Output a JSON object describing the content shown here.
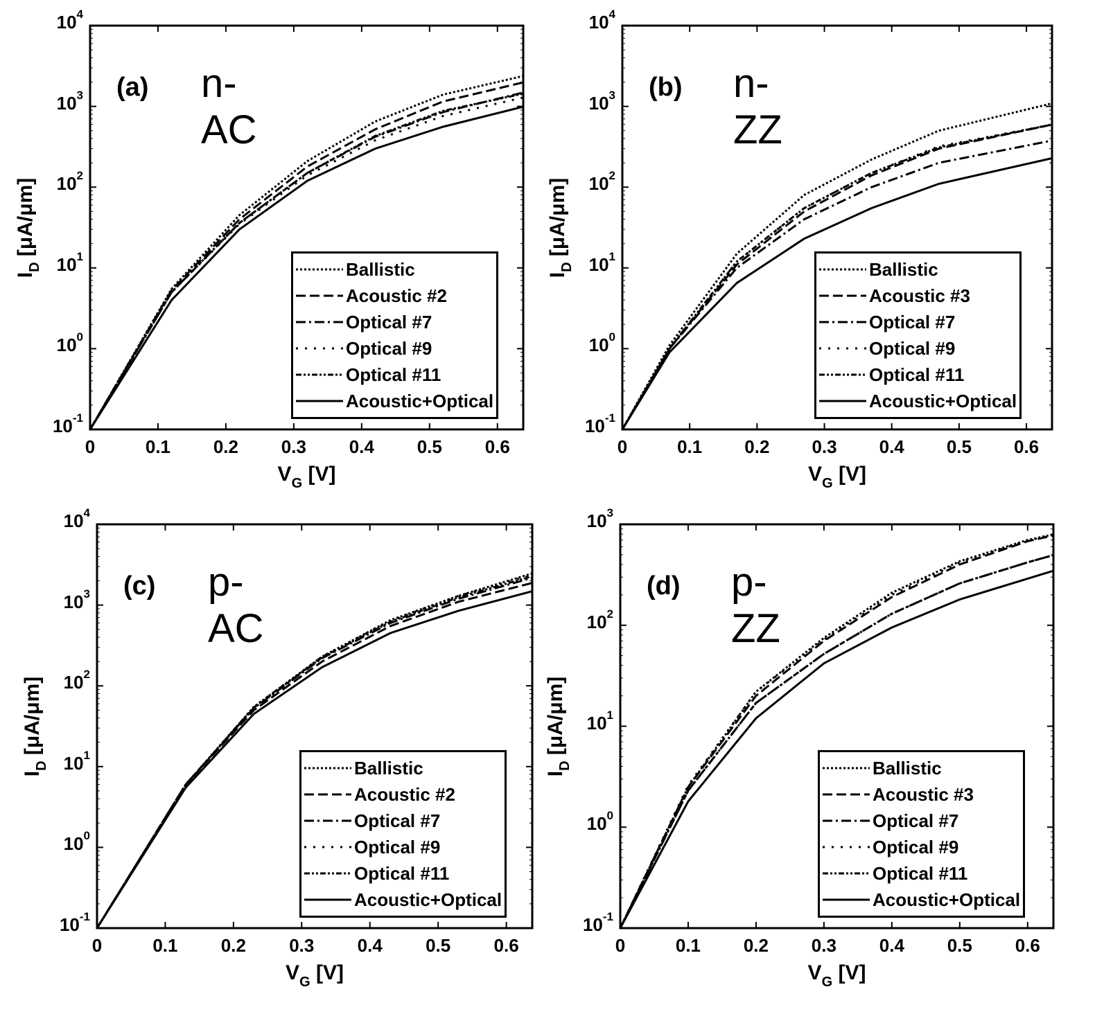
{
  "chart_data": [
    {
      "type": "line",
      "panel_label": "(a)",
      "title": "n-AC",
      "xlabel": {
        "main": "V",
        "sub": "G",
        "unit": " [V]"
      },
      "ylabel": {
        "main": "I",
        "sub": "D",
        "unit": " [μA/μm]"
      },
      "xscale": "linear",
      "yscale": "log",
      "xlim": [
        0,
        0.638
      ],
      "ylim": [
        0.1,
        10000
      ],
      "xticks": [
        "0",
        "0.1",
        "0.2",
        "0.3",
        "0.4",
        "0.5",
        "0.6"
      ],
      "ytick_base": "10",
      "ytick_exponents": [
        "-1",
        "0",
        "1",
        "2",
        "3",
        "4"
      ],
      "legend_position": "bottom-right",
      "x": [
        0,
        0.12,
        0.22,
        0.32,
        0.42,
        0.52,
        0.64
      ],
      "series": [
        {
          "name": "Ballistic",
          "style": "dotted",
          "values": [
            0.1,
            5.5,
            45,
            210,
            650,
            1400,
            2400
          ]
        },
        {
          "name": "Acoustic #2",
          "style": "dashed",
          "values": [
            0.1,
            5.3,
            40,
            180,
            520,
            1150,
            2000
          ]
        },
        {
          "name": "Optical #7",
          "style": "dashdot",
          "values": [
            0.1,
            5,
            36,
            150,
            420,
            850,
            1500
          ]
        },
        {
          "name": "Optical #9",
          "style": "sparse-dotted",
          "values": [
            0.1,
            5,
            35,
            140,
            380,
            760,
            1300
          ]
        },
        {
          "name": "Optical #11",
          "style": "dash-dot-dot",
          "values": [
            0.1,
            5,
            36,
            150,
            430,
            880,
            1450
          ]
        },
        {
          "name": "Acoustic+Optical",
          "style": "solid",
          "values": [
            0.1,
            4,
            30,
            120,
            300,
            560,
            1000
          ]
        }
      ]
    },
    {
      "type": "line",
      "panel_label": "(b)",
      "title": "n-ZZ",
      "xlabel": {
        "main": "V",
        "sub": "G",
        "unit": " [V]"
      },
      "ylabel": {
        "main": "I",
        "sub": "D",
        "unit": " [μA/μm]"
      },
      "xscale": "linear",
      "yscale": "log",
      "xlim": [
        0,
        0.638
      ],
      "ylim": [
        0.1,
        10000
      ],
      "xticks": [
        "0",
        "0.1",
        "0.2",
        "0.3",
        "0.4",
        "0.5",
        "0.6"
      ],
      "ytick_base": "10",
      "ytick_exponents": [
        "-1",
        "0",
        "1",
        "2",
        "3",
        "4"
      ],
      "legend_position": "bottom-right",
      "x": [
        0,
        0.07,
        0.17,
        0.27,
        0.37,
        0.47,
        0.64
      ],
      "series": [
        {
          "name": "Ballistic",
          "style": "dotted",
          "values": [
            0.1,
            1.1,
            15,
            80,
            220,
            500,
            1100
          ]
        },
        {
          "name": "Acoustic #3",
          "style": "dashed",
          "values": [
            0.1,
            1.0,
            11,
            50,
            140,
            300,
            600
          ]
        },
        {
          "name": "Optical #7",
          "style": "dashdot",
          "values": [
            0.1,
            1.0,
            10,
            40,
            100,
            200,
            380
          ]
        },
        {
          "name": "Optical #9",
          "style": "sparse-dotted",
          "values": [
            0.1,
            1.0,
            12,
            55,
            150,
            320,
            600
          ]
        },
        {
          "name": "Optical #11",
          "style": "dash-dot-dot",
          "values": [
            0.1,
            1.0,
            12,
            55,
            150,
            310,
            600
          ]
        },
        {
          "name": "Acoustic+Optical",
          "style": "solid",
          "values": [
            0.1,
            0.9,
            6.5,
            23,
            55,
            110,
            230
          ]
        }
      ]
    },
    {
      "type": "line",
      "panel_label": "(c)",
      "title": "p-AC",
      "xlabel": {
        "main": "V",
        "sub": "G",
        "unit": " [V]"
      },
      "ylabel": {
        "main": "I",
        "sub": "D",
        "unit": " [μA/μm]"
      },
      "xscale": "linear",
      "yscale": "log",
      "xlim": [
        0,
        0.638
      ],
      "ylim": [
        0.1,
        10000
      ],
      "xticks": [
        "0",
        "0.1",
        "0.2",
        "0.3",
        "0.4",
        "0.5",
        "0.6"
      ],
      "ytick_base": "10",
      "ytick_exponents": [
        "-1",
        "0",
        "1",
        "2",
        "3",
        "4"
      ],
      "legend_position": "bottom-right",
      "x": [
        0,
        0.13,
        0.23,
        0.33,
        0.43,
        0.53,
        0.64
      ],
      "series": [
        {
          "name": "Ballistic",
          "style": "dotted",
          "values": [
            0.1,
            6,
            55,
            230,
            650,
            1300,
            2500
          ]
        },
        {
          "name": "Acoustic #2",
          "style": "dashed",
          "values": [
            0.1,
            6,
            50,
            200,
            550,
            1100,
            1900
          ]
        },
        {
          "name": "Optical #7",
          "style": "dashdot",
          "values": [
            0.1,
            6,
            53,
            220,
            600,
            1200,
            2200
          ]
        },
        {
          "name": "Optical #9",
          "style": "sparse-dotted",
          "values": [
            0.1,
            6,
            55,
            230,
            640,
            1300,
            2400
          ]
        },
        {
          "name": "Optical #11",
          "style": "dash-dot-dot",
          "values": [
            0.1,
            6,
            54,
            225,
            620,
            1250,
            2300
          ]
        },
        {
          "name": "Acoustic+Optical",
          "style": "solid",
          "values": [
            0.1,
            5.5,
            45,
            170,
            450,
            850,
            1500
          ]
        }
      ]
    },
    {
      "type": "line",
      "panel_label": "(d)",
      "title": "p-ZZ",
      "xlabel": {
        "main": "V",
        "sub": "G",
        "unit": " [V]"
      },
      "ylabel": {
        "main": "I",
        "sub": "D",
        "unit": " [μA/μm]"
      },
      "xscale": "linear",
      "yscale": "log",
      "xlim": [
        0,
        0.638
      ],
      "ylim": [
        0.1,
        1000
      ],
      "xticks": [
        "0",
        "0.1",
        "0.2",
        "0.3",
        "0.4",
        "0.5",
        "0.6"
      ],
      "ytick_base": "10",
      "ytick_exponents": [
        "-1",
        "0",
        "1",
        "2",
        "3"
      ],
      "legend_position": "bottom-right",
      "x": [
        0,
        0.1,
        0.2,
        0.3,
        0.4,
        0.5,
        0.6,
        0.64
      ],
      "series": [
        {
          "name": "Ballistic",
          "style": "dotted",
          "values": [
            0.1,
            2.5,
            22,
            75,
            210,
            430,
            700,
            800
          ]
        },
        {
          "name": "Acoustic #3",
          "style": "dashed",
          "values": [
            0.1,
            2.5,
            20,
            70,
            190,
            400,
            680,
            780
          ]
        },
        {
          "name": "Optical #7",
          "style": "dashdot",
          "values": [
            0.1,
            2.3,
            17,
            52,
            130,
            260,
            420,
            500
          ]
        },
        {
          "name": "Optical #9",
          "style": "sparse-dotted",
          "values": [
            0.1,
            2.6,
            22,
            72,
            200,
            420,
            690,
            790
          ]
        },
        {
          "name": "Optical #11",
          "style": "dash-dot-dot",
          "values": [
            0.1,
            2.3,
            17,
            52,
            130,
            260,
            420,
            500
          ]
        },
        {
          "name": "Acoustic+Optical",
          "style": "solid",
          "values": [
            0.1,
            1.8,
            12,
            42,
            95,
            180,
            290,
            350
          ]
        }
      ]
    }
  ]
}
